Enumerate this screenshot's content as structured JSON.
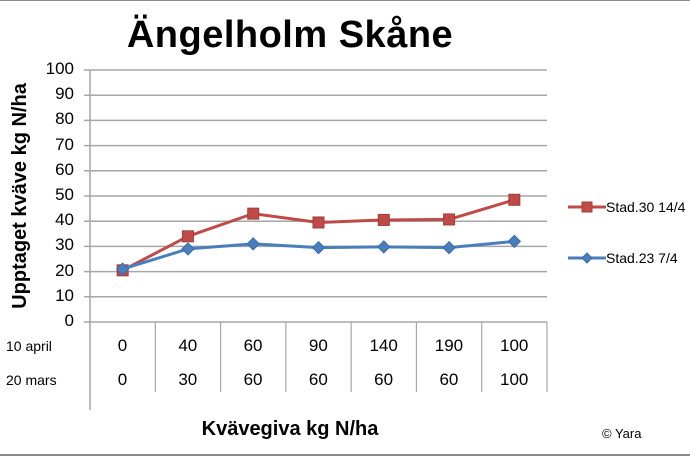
{
  "chart_data": {
    "type": "line",
    "title": "Ängelholm Skåne",
    "xlabel": "Kvävegiva kg N/ha",
    "ylabel": "Upptaget kväve kg N/ha",
    "ylim": [
      0,
      100
    ],
    "yticks": [
      0,
      10,
      20,
      30,
      40,
      50,
      60,
      70,
      80,
      90,
      100
    ],
    "grid": true,
    "legend_position": "right",
    "categories": [
      "0/0",
      "40/30",
      "60/60",
      "90/60",
      "140/60",
      "190/60",
      "100/100"
    ],
    "table_rows": [
      {
        "label": "10 april",
        "values": [
          "0",
          "40",
          "60",
          "90",
          "140",
          "190",
          "100"
        ]
      },
      {
        "label": "20 mars",
        "values": [
          "0",
          "30",
          "60",
          "60",
          "60",
          "60",
          "100"
        ]
      }
    ],
    "series": [
      {
        "name": "Stad.30 14/4",
        "color": "#be4b48",
        "marker": "square",
        "values": [
          20.5,
          34,
          43,
          39.5,
          40.5,
          40.7,
          48.5
        ]
      },
      {
        "name": "Stad.23 7/4",
        "color": "#4a7ebb",
        "marker": "diamond",
        "values": [
          21,
          29,
          31,
          29.5,
          29.8,
          29.5,
          32
        ]
      }
    ],
    "annotations": [
      "© Yara"
    ]
  },
  "labels": {
    "title": "Ängelholm Skåne",
    "ylabel": "Upptaget kväve kg N/ha",
    "xlabel": "Kvävegiva kg N/ha",
    "copyright": "© Yara",
    "row1": "10 april",
    "row2": "20 mars",
    "legend1": "Stad.30 14/4",
    "legend2": "Stad.23 7/4"
  }
}
